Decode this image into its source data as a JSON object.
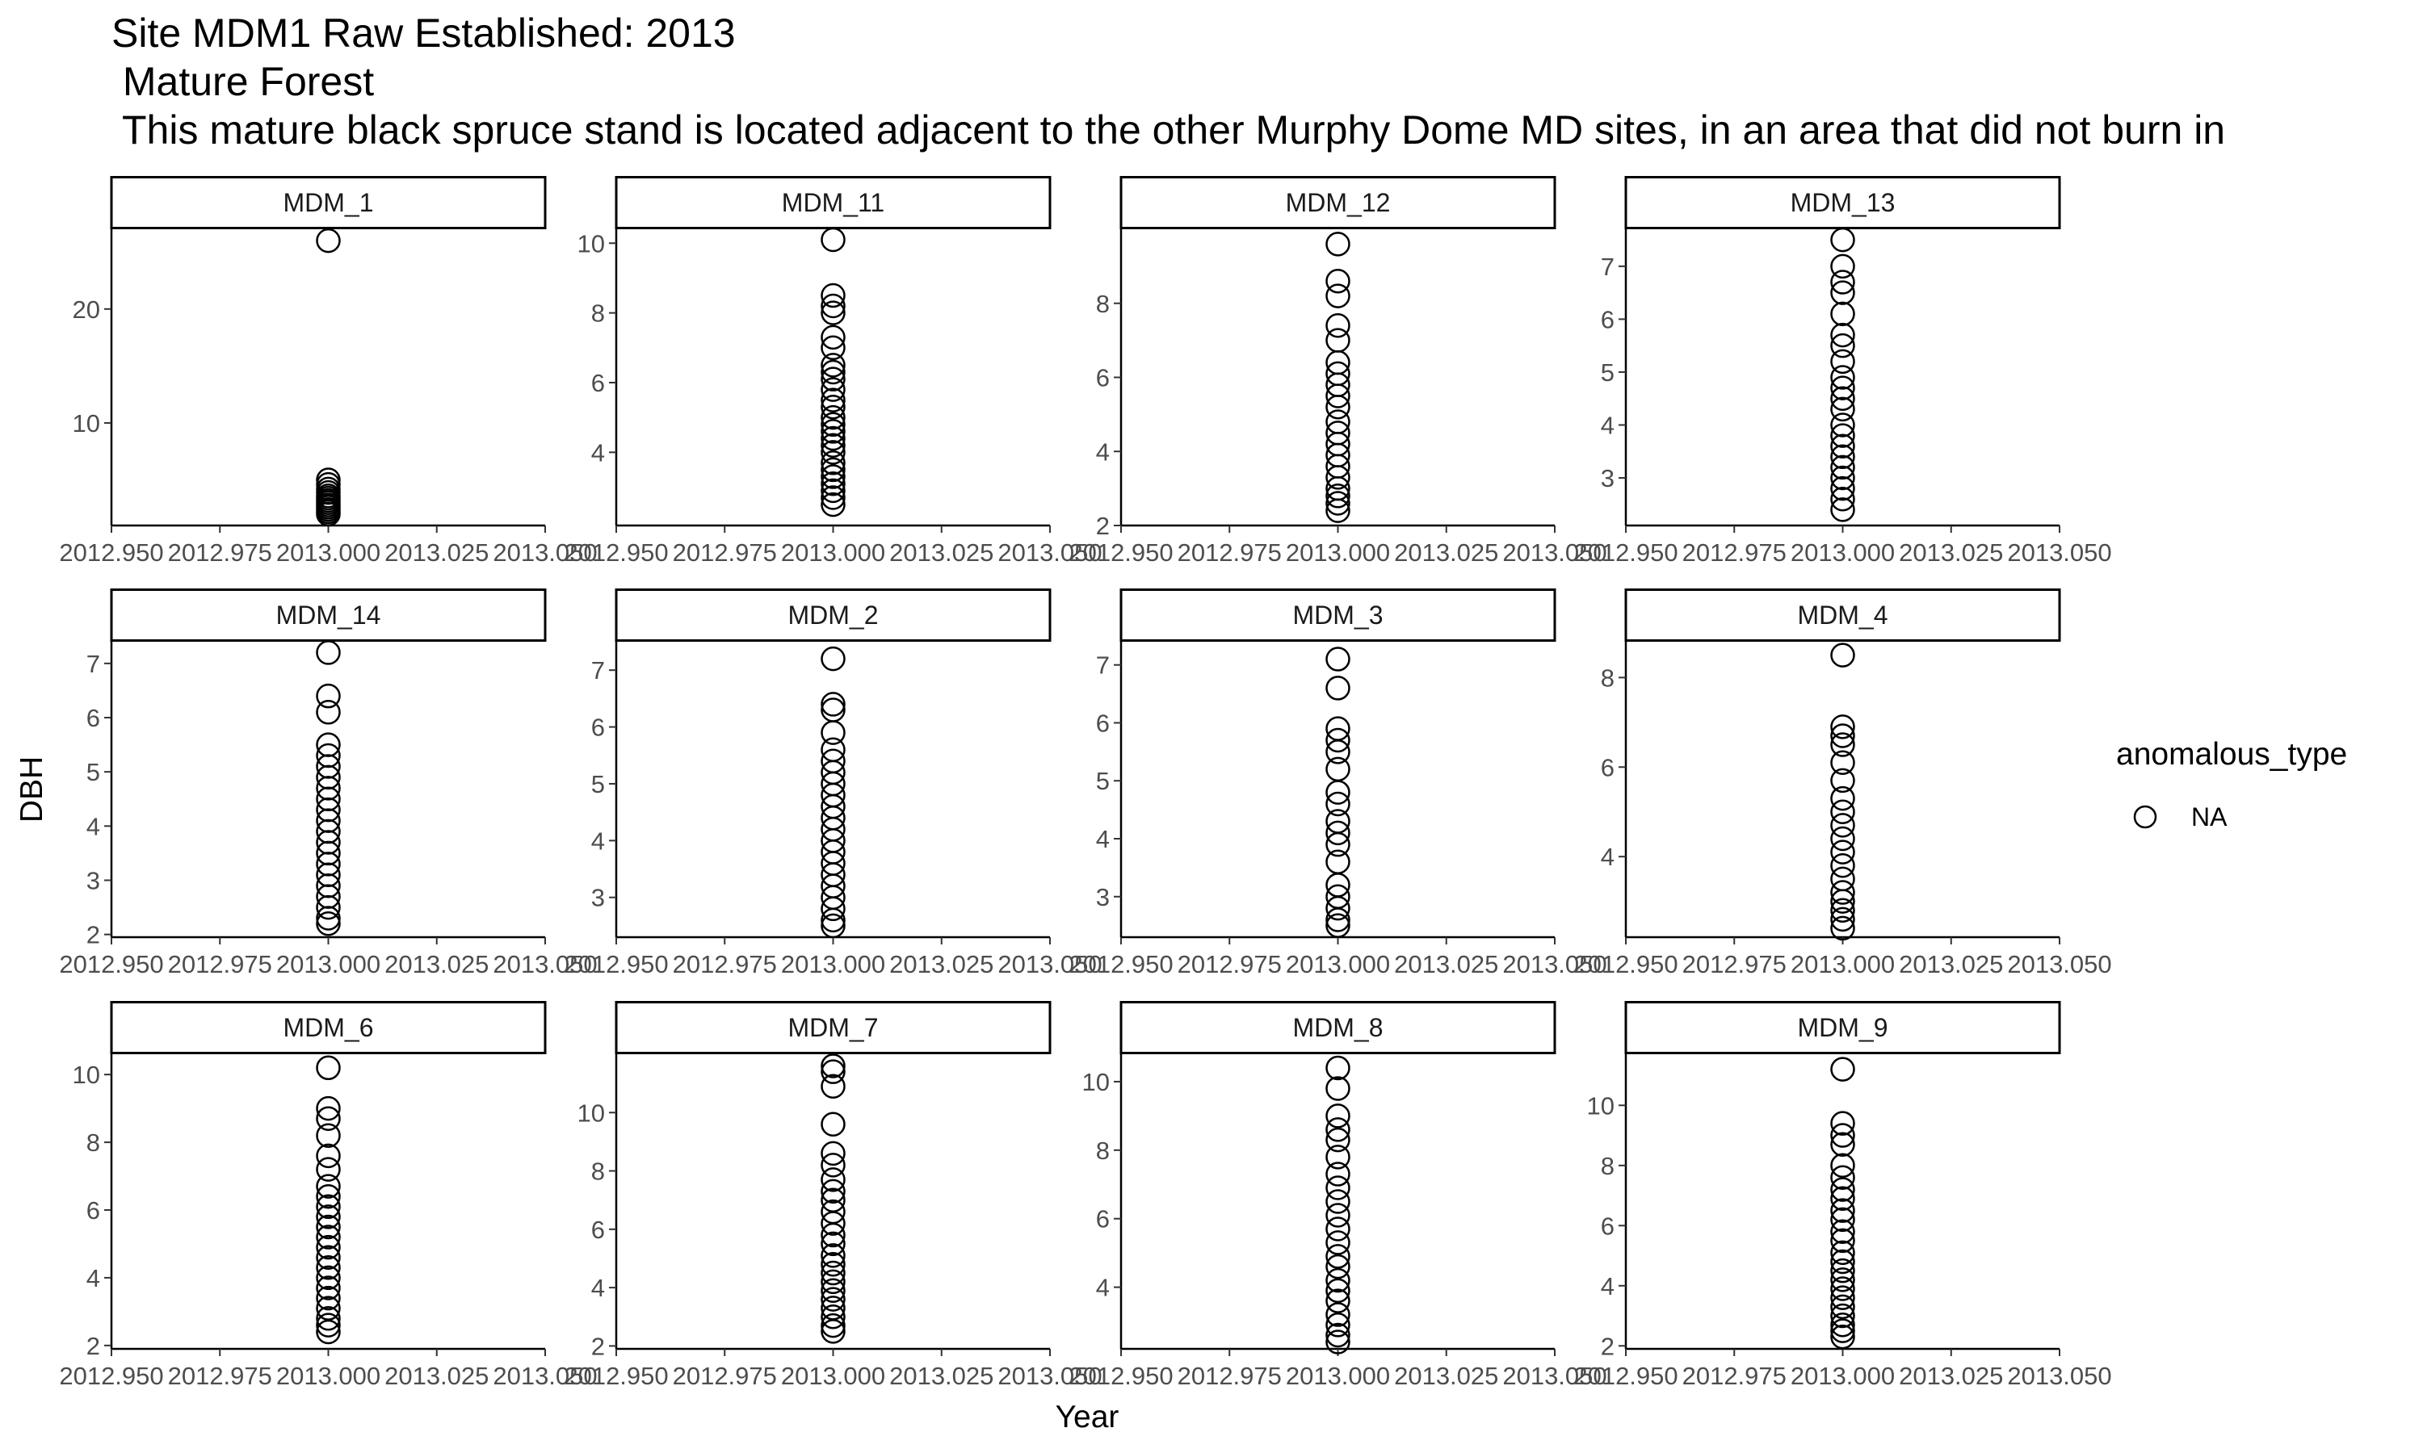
{
  "chart_data": {
    "type": "scatter",
    "title": [
      "Site MDM1 Raw Established: 2013",
      " Mature Forest",
      " This mature black spruce stand is located adjacent to the other Murphy Dome MD sites, in an area that did not burn in"
    ],
    "xlabel": "Year",
    "ylabel": "DBH",
    "legend": {
      "title": "anomalous_type",
      "entries": [
        "NA"
      ],
      "position": "right"
    },
    "grid": false,
    "facet_scales": "free_y",
    "xlim": [
      2012.95,
      2013.05
    ],
    "xticks": [
      "2012.950",
      "2012.975",
      "2013.000",
      "2013.025",
      "2013.050"
    ],
    "panels": [
      {
        "name": "MDM_1",
        "ylim": [
          1.0,
          27.0
        ],
        "yticks": [
          10,
          20
        ],
        "x": 2013.0,
        "y": [
          26.0,
          5.0,
          4.6,
          4.2,
          3.9,
          3.6,
          3.4,
          3.2,
          3.0,
          2.8,
          2.6,
          2.4,
          2.2,
          2.0
        ]
      },
      {
        "name": "MDM_11",
        "ylim": [
          1.9,
          10.4
        ],
        "yticks": [
          4,
          6,
          8,
          10
        ],
        "x": 2013.0,
        "y": [
          10.1,
          8.5,
          8.2,
          8.0,
          7.3,
          7.0,
          6.5,
          6.3,
          6.1,
          5.8,
          5.5,
          5.3,
          5.0,
          4.8,
          4.6,
          4.4,
          4.2,
          4.0,
          3.7,
          3.5,
          3.3,
          3.1,
          2.9,
          2.7,
          2.5
        ]
      },
      {
        "name": "MDM_12",
        "ylim": [
          2.0,
          10.0
        ],
        "yticks": [
          2,
          4,
          6,
          8
        ],
        "x": 2013.0,
        "y": [
          9.6,
          8.6,
          8.2,
          7.4,
          7.0,
          6.4,
          6.1,
          5.8,
          5.5,
          5.2,
          4.8,
          4.5,
          4.2,
          3.9,
          3.6,
          3.3,
          3.0,
          2.8,
          2.6,
          2.4
        ]
      },
      {
        "name": "MDM_13",
        "ylim": [
          2.1,
          7.7
        ],
        "yticks": [
          3,
          4,
          5,
          6,
          7
        ],
        "x": 2013.0,
        "y": [
          7.5,
          7.0,
          6.7,
          6.5,
          6.1,
          5.7,
          5.5,
          5.2,
          4.9,
          4.7,
          4.5,
          4.3,
          4.0,
          3.8,
          3.6,
          3.4,
          3.2,
          3.0,
          2.8,
          2.6,
          2.4
        ]
      },
      {
        "name": "MDM_14",
        "ylim": [
          1.95,
          7.4
        ],
        "yticks": [
          2,
          3,
          4,
          5,
          6,
          7
        ],
        "x": 2013.0,
        "y": [
          7.2,
          6.4,
          6.1,
          5.5,
          5.3,
          5.1,
          4.9,
          4.7,
          4.5,
          4.3,
          4.1,
          3.9,
          3.7,
          3.5,
          3.3,
          3.1,
          2.9,
          2.7,
          2.5,
          2.3,
          2.2
        ]
      },
      {
        "name": "MDM_2",
        "ylim": [
          2.3,
          7.5
        ],
        "yticks": [
          3,
          4,
          5,
          6,
          7
        ],
        "x": 2013.0,
        "y": [
          7.2,
          6.4,
          6.3,
          5.9,
          5.6,
          5.4,
          5.2,
          5.0,
          4.8,
          4.6,
          4.4,
          4.2,
          4.0,
          3.8,
          3.6,
          3.4,
          3.2,
          3.0,
          2.8,
          2.6,
          2.5
        ]
      },
      {
        "name": "MDM_3",
        "ylim": [
          2.3,
          7.4
        ],
        "yticks": [
          3,
          4,
          5,
          6,
          7
        ],
        "x": 2013.0,
        "y": [
          7.1,
          6.6,
          5.9,
          5.7,
          5.5,
          5.2,
          4.8,
          4.6,
          4.3,
          4.1,
          3.9,
          3.6,
          3.2,
          3.0,
          2.8,
          2.6,
          2.5
        ]
      },
      {
        "name": "MDM_4",
        "ylim": [
          2.2,
          8.8
        ],
        "yticks": [
          4,
          6,
          8
        ],
        "x": 2013.0,
        "y": [
          8.5,
          6.9,
          6.7,
          6.5,
          6.1,
          5.7,
          5.3,
          5.0,
          4.7,
          4.4,
          4.1,
          3.8,
          3.5,
          3.2,
          3.0,
          2.8,
          2.6,
          2.4
        ]
      },
      {
        "name": "MDM_6",
        "ylim": [
          1.9,
          10.6
        ],
        "yticks": [
          2,
          4,
          6,
          8,
          10
        ],
        "x": 2013.0,
        "y": [
          10.2,
          9.0,
          8.7,
          8.2,
          7.6,
          7.2,
          6.7,
          6.4,
          6.1,
          5.8,
          5.5,
          5.2,
          4.9,
          4.6,
          4.3,
          4.0,
          3.7,
          3.4,
          3.1,
          2.8,
          2.6,
          2.4
        ]
      },
      {
        "name": "MDM_7",
        "ylim": [
          1.9,
          12.0
        ],
        "yticks": [
          2,
          4,
          6,
          8,
          10
        ],
        "x": 2013.0,
        "y": [
          11.6,
          11.4,
          10.9,
          9.6,
          8.6,
          8.2,
          7.7,
          7.3,
          7.0,
          6.6,
          6.2,
          5.8,
          5.5,
          5.1,
          4.8,
          4.5,
          4.2,
          3.9,
          3.6,
          3.3,
          3.0,
          2.7,
          2.5
        ]
      },
      {
        "name": "MDM_8",
        "ylim": [
          2.2,
          10.8
        ],
        "yticks": [
          4,
          6,
          8,
          10
        ],
        "x": 2013.0,
        "y": [
          10.4,
          9.8,
          9.0,
          8.6,
          8.3,
          7.8,
          7.3,
          6.9,
          6.5,
          6.1,
          5.7,
          5.3,
          4.9,
          4.6,
          4.2,
          3.9,
          3.6,
          3.2,
          2.9,
          2.6,
          2.4
        ]
      },
      {
        "name": "MDM_9",
        "ylim": [
          1.9,
          11.7
        ],
        "yticks": [
          2,
          4,
          6,
          8,
          10
        ],
        "x": 2013.0,
        "y": [
          11.2,
          9.4,
          9.0,
          8.7,
          8.0,
          7.6,
          7.2,
          6.9,
          6.5,
          6.2,
          5.8,
          5.5,
          5.1,
          4.8,
          4.5,
          4.2,
          3.9,
          3.6,
          3.3,
          3.0,
          2.7,
          2.5,
          2.3
        ]
      }
    ]
  }
}
